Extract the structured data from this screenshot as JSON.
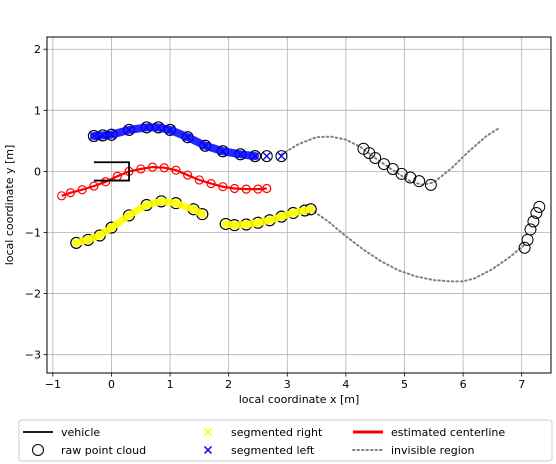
{
  "chart_data": {
    "type": "scatter",
    "title": "",
    "xlabel": "local coordinate x [m]",
    "ylabel": "local coordinate y [m]",
    "xlim": [
      -1.1,
      7.5
    ],
    "ylim": [
      -3.3,
      2.2
    ],
    "xticks": [
      -1,
      0,
      1,
      2,
      3,
      4,
      5,
      6,
      7
    ],
    "yticks": [
      -3,
      -2,
      -1,
      0,
      1,
      2
    ],
    "xtick_labels": [
      "−1",
      "0",
      "1",
      "2",
      "3",
      "4",
      "5",
      "6",
      "7"
    ],
    "ytick_labels": [
      "−3",
      "−2",
      "−1",
      "0",
      "1",
      "2"
    ],
    "grid": true,
    "legend_position": "below",
    "colors": {
      "vehicle": "#000000",
      "raw": "#000000",
      "right": "#ffff00",
      "left": "#0000ff",
      "centerline": "#ff0000",
      "invisible": "#808080"
    },
    "legend": [
      {
        "key": "vehicle",
        "label": "vehicle",
        "marker": "line-black"
      },
      {
        "key": "raw",
        "label": "raw point cloud",
        "marker": "open-circle"
      },
      {
        "key": "right",
        "label": "segmented right",
        "marker": "x-yellow"
      },
      {
        "key": "left",
        "label": "segmented left",
        "marker": "x-blue"
      },
      {
        "key": "center",
        "label": "estimated centerline",
        "marker": "line-red"
      },
      {
        "key": "invisible",
        "label": "invisible region",
        "marker": "dotted-gray"
      }
    ],
    "vehicle": {
      "x": [
        -0.3,
        0.3
      ],
      "y": [
        0.15,
        -0.15
      ]
    },
    "raw_point_cloud": [
      {
        "x": [
          -0.3,
          -0.15,
          0.0,
          0.3,
          0.6,
          0.8,
          1.0,
          1.3,
          1.6,
          1.9,
          2.2,
          2.45
        ],
        "y": [
          0.58,
          0.59,
          0.6,
          0.68,
          0.72,
          0.72,
          0.68,
          0.56,
          0.42,
          0.33,
          0.28,
          0.25
        ]
      },
      {
        "x": [
          -0.6,
          -0.4,
          -0.2,
          0.0,
          0.3,
          0.6,
          0.85,
          1.1,
          1.4,
          1.55
        ],
        "y": [
          -1.17,
          -1.12,
          -1.05,
          -0.92,
          -0.72,
          -0.55,
          -0.49,
          -0.52,
          -0.62,
          -0.7
        ]
      },
      {
        "x": [
          1.95,
          2.1,
          2.3,
          2.5,
          2.7,
          2.9,
          3.1,
          3.3,
          3.4
        ],
        "y": [
          -0.86,
          -0.88,
          -0.87,
          -0.84,
          -0.8,
          -0.74,
          -0.68,
          -0.64,
          -0.62
        ]
      },
      {
        "x": [
          4.3,
          4.4,
          4.5,
          4.65,
          4.8,
          4.95,
          5.1,
          5.25,
          5.45
        ],
        "y": [
          0.37,
          0.3,
          0.22,
          0.12,
          0.04,
          -0.04,
          -0.1,
          -0.16,
          -0.22
        ]
      },
      {
        "x": [
          7.05,
          7.1,
          7.15,
          7.2,
          7.25,
          7.3
        ],
        "y": [
          -1.25,
          -1.12,
          -0.95,
          -0.82,
          -0.68,
          -0.58
        ]
      }
    ],
    "segmented_left": {
      "x": [
        -0.3,
        -0.15,
        0.0,
        0.3,
        0.6,
        0.8,
        1.0,
        1.3,
        1.6,
        1.9,
        2.2,
        2.45,
        2.65,
        2.9
      ],
      "y": [
        0.58,
        0.59,
        0.6,
        0.68,
        0.72,
        0.72,
        0.68,
        0.56,
        0.42,
        0.33,
        0.28,
        0.25,
        0.25,
        0.25
      ]
    },
    "segmented_right": {
      "x": [
        -0.6,
        -0.4,
        -0.2,
        0.0,
        0.3,
        0.6,
        0.85,
        1.1,
        1.4,
        1.55,
        1.95,
        2.1,
        2.3,
        2.5,
        2.7,
        2.9,
        3.1,
        3.3,
        3.4
      ],
      "y": [
        -1.17,
        -1.12,
        -1.05,
        -0.92,
        -0.72,
        -0.55,
        -0.49,
        -0.52,
        -0.62,
        -0.7,
        -0.86,
        -0.88,
        -0.87,
        -0.84,
        -0.8,
        -0.74,
        -0.68,
        -0.64,
        -0.62
      ]
    },
    "estimated_centerline": {
      "x": [
        -0.85,
        -0.7,
        -0.5,
        -0.3,
        -0.1,
        0.1,
        0.3,
        0.5,
        0.7,
        0.9,
        1.1,
        1.3,
        1.5,
        1.7,
        1.9,
        2.1,
        2.3,
        2.5,
        2.65
      ],
      "y": [
        -0.4,
        -0.35,
        -0.3,
        -0.24,
        -0.17,
        -0.08,
        0.0,
        0.04,
        0.07,
        0.06,
        0.02,
        -0.06,
        -0.14,
        -0.2,
        -0.25,
        -0.28,
        -0.29,
        -0.29,
        -0.28
      ]
    },
    "invisible_region": [
      {
        "x": [
          2.9,
          3.2,
          3.5,
          3.75,
          4.0,
          4.25,
          4.5,
          4.8,
          5.1,
          5.3,
          5.5,
          5.8,
          6.1,
          6.4,
          6.6
        ],
        "y": [
          0.28,
          0.45,
          0.56,
          0.57,
          0.52,
          0.4,
          0.22,
          0.02,
          -0.16,
          -0.22,
          -0.18,
          0.05,
          0.33,
          0.58,
          0.7
        ]
      },
      {
        "x": [
          3.4,
          3.7,
          4.0,
          4.3,
          4.6,
          4.9,
          5.2,
          5.5,
          5.8,
          6.0,
          6.2,
          6.5,
          6.8,
          7.05
        ],
        "y": [
          -0.62,
          -0.82,
          -1.06,
          -1.28,
          -1.47,
          -1.62,
          -1.72,
          -1.78,
          -1.8,
          -1.8,
          -1.75,
          -1.6,
          -1.4,
          -1.2
        ]
      }
    ]
  }
}
